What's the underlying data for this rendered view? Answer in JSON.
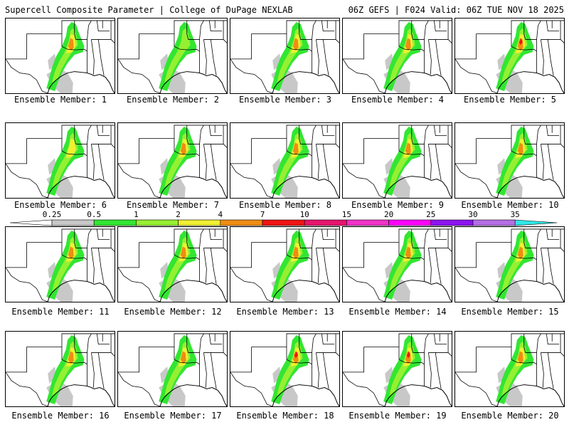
{
  "header": {
    "left": "Supercell Composite Parameter | College of DuPage NEXLAB",
    "right": "06Z GEFS | F024 Valid: 06Z TUE NOV 18 2025"
  },
  "colorbar": {
    "ticks": [
      "0.25",
      "0.5",
      "1",
      "2",
      "4",
      "7",
      "10",
      "15",
      "20",
      "25",
      "30",
      "35"
    ],
    "colors": [
      "#c8c8c8",
      "#32e632",
      "#96f032",
      "#f0f032",
      "#f08c14",
      "#f01414",
      "#e6146e",
      "#f032c8",
      "#ff00ff",
      "#8c14f0",
      "#b46ee6",
      "#32e6e6"
    ]
  },
  "members": [
    {
      "label": "Ensemble Member: 1",
      "intensity": 3
    },
    {
      "label": "Ensemble Member: 2",
      "intensity": 1
    },
    {
      "label": "Ensemble Member: 3",
      "intensity": 3
    },
    {
      "label": "Ensemble Member: 4",
      "intensity": 3
    },
    {
      "label": "Ensemble Member: 5",
      "intensity": 4
    },
    {
      "label": "Ensemble Member: 6",
      "intensity": 2
    },
    {
      "label": "Ensemble Member: 7",
      "intensity": 3
    },
    {
      "label": "Ensemble Member: 8",
      "intensity": 3
    },
    {
      "label": "Ensemble Member: 9",
      "intensity": 3
    },
    {
      "label": "Ensemble Member: 10",
      "intensity": 3
    },
    {
      "label": "Ensemble Member: 11",
      "intensity": 3
    },
    {
      "label": "Ensemble Member: 12",
      "intensity": 3
    },
    {
      "label": "Ensemble Member: 13",
      "intensity": 3
    },
    {
      "label": "Ensemble Member: 14",
      "intensity": 3
    },
    {
      "label": "Ensemble Member: 15",
      "intensity": 3
    },
    {
      "label": "Ensemble Member: 16",
      "intensity": 3
    },
    {
      "label": "Ensemble Member: 17",
      "intensity": 3
    },
    {
      "label": "Ensemble Member: 18",
      "intensity": 4
    },
    {
      "label": "Ensemble Member: 19",
      "intensity": 4
    },
    {
      "label": "Ensemble Member: 20",
      "intensity": 3
    }
  ]
}
